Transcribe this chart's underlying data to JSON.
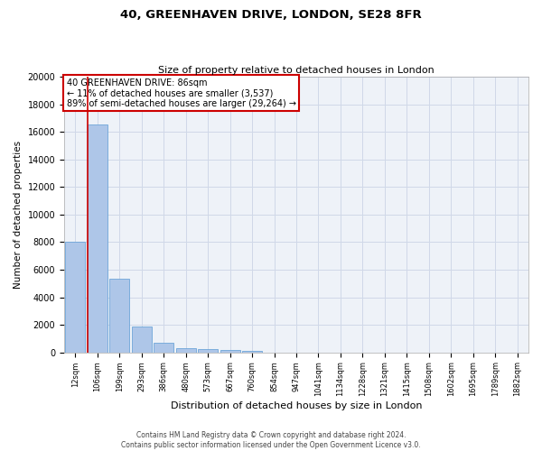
{
  "title1": "40, GREENHAVEN DRIVE, LONDON, SE28 8FR",
  "title2": "Size of property relative to detached houses in London",
  "xlabel": "Distribution of detached houses by size in London",
  "ylabel": "Number of detached properties",
  "categories": [
    "12sqm",
    "106sqm",
    "199sqm",
    "293sqm",
    "386sqm",
    "480sqm",
    "573sqm",
    "667sqm",
    "760sqm",
    "854sqm",
    "947sqm",
    "1041sqm",
    "1134sqm",
    "1228sqm",
    "1321sqm",
    "1415sqm",
    "1508sqm",
    "1602sqm",
    "1695sqm",
    "1789sqm",
    "1882sqm"
  ],
  "values": [
    8050,
    16550,
    5350,
    1850,
    700,
    320,
    220,
    200,
    130,
    0,
    0,
    0,
    0,
    0,
    0,
    0,
    0,
    0,
    0,
    0,
    0
  ],
  "bar_color": "#aec6e8",
  "bar_edge_color": "#5b9bd5",
  "annotation_line1": "40 GREENHAVEN DRIVE: 86sqm",
  "annotation_line2": "← 11% of detached houses are smaller (3,537)",
  "annotation_line3": "89% of semi-detached houses are larger (29,264) →",
  "annotation_box_color": "#ffffff",
  "annotation_box_edge_color": "#cc0000",
  "vline_color": "#cc0000",
  "grid_color": "#d0d8e8",
  "bg_color": "#eef2f8",
  "ylim": [
    0,
    20000
  ],
  "yticks": [
    0,
    2000,
    4000,
    6000,
    8000,
    10000,
    12000,
    14000,
    16000,
    18000,
    20000
  ],
  "footer1": "Contains HM Land Registry data © Crown copyright and database right 2024.",
  "footer2": "Contains public sector information licensed under the Open Government Licence v3.0."
}
